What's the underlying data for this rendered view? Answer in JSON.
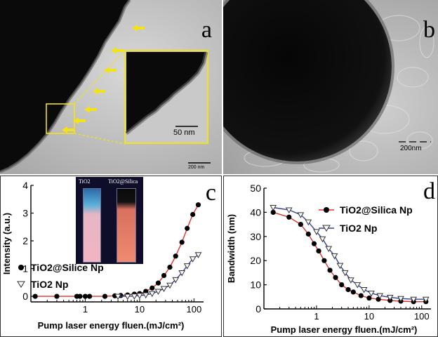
{
  "figure": {
    "panel_a": {
      "label": "a",
      "scale_bar": "200 nm",
      "inset_scale_bar": "50 nm"
    },
    "panel_b": {
      "label": "b",
      "scale_bar": "200nm"
    },
    "panel_c": {
      "label": "c",
      "inset_labels": [
        "TiO2",
        "TiO2@Silica"
      ]
    },
    "panel_d": {
      "label": "d"
    }
  },
  "chart_data": [
    {
      "type": "scatter",
      "panel": "c",
      "xscale": "log",
      "xlabel": "Pump laser energy fluen.(mJ/cm²)",
      "ylabel": "Intensity (a.u.)",
      "xlim": [
        0.1,
        150
      ],
      "ylim": [
        -0.2,
        4
      ],
      "yticks": [
        0,
        1,
        2,
        3,
        4
      ],
      "xticks": [
        1,
        10,
        100
      ],
      "legend": "middle-left",
      "series": [
        {
          "name": "TiO2@Silice Np",
          "marker": "filled-circle",
          "fit_color": "#e03030",
          "x": [
            0.12,
            0.3,
            0.7,
            0.8,
            1.0,
            1.2,
            2.3,
            3.5,
            4.5,
            6,
            8,
            10,
            13,
            17,
            22,
            28,
            36,
            46,
            60,
            75,
            95,
            120
          ],
          "y": [
            0,
            0,
            0,
            0,
            0,
            0,
            0,
            0.02,
            0.03,
            0.05,
            0.08,
            0.1,
            0.18,
            0.3,
            0.48,
            0.75,
            1.05,
            1.45,
            1.95,
            2.45,
            2.95,
            3.3
          ]
        },
        {
          "name": "TiO2 Np",
          "marker": "open-triangle-down",
          "fit_color": "#3040a0",
          "x": [
            4,
            6,
            8,
            10,
            13,
            17,
            22,
            28,
            36,
            46,
            60,
            75,
            95,
            120
          ],
          "y": [
            0,
            0,
            0.01,
            0.03,
            0.05,
            0.1,
            0.18,
            0.28,
            0.4,
            0.6,
            0.85,
            1.1,
            1.35,
            1.5
          ]
        }
      ]
    },
    {
      "type": "scatter",
      "panel": "d",
      "xscale": "log",
      "xlabel": "Pump laser energy fluen.(mJ/cm²)",
      "ylabel": "Bandwidth (nm)",
      "xlim": [
        0.1,
        150
      ],
      "ylim": [
        0,
        50
      ],
      "yticks": [
        0,
        10,
        20,
        30,
        40,
        50
      ],
      "xticks": [
        1,
        10,
        100
      ],
      "legend": "top-right",
      "series": [
        {
          "name": "TiO2@Silica Np",
          "marker": "filled-circle",
          "fit_color": "#e03030",
          "x": [
            0.15,
            0.3,
            0.5,
            0.7,
            0.9,
            1.1,
            1.4,
            1.8,
            2.3,
            3,
            4,
            5,
            7,
            10,
            15,
            25,
            40,
            70,
            120
          ],
          "y": [
            40,
            38,
            35,
            31,
            27,
            24,
            20,
            16,
            13,
            10,
            8,
            7,
            5.5,
            4.5,
            4,
            3.5,
            3.2,
            3,
            3
          ]
        },
        {
          "name": "TiO2 Np",
          "marker": "open-triangle-down",
          "fit_color": "#3040a0",
          "x": [
            0.15,
            0.3,
            0.5,
            0.7,
            1.0,
            1.3,
            1.7,
            2.2,
            2.8,
            3.5,
            4.5,
            6,
            8,
            11,
            16,
            25,
            40,
            70,
            120
          ],
          "y": [
            42,
            41,
            39,
            36,
            32,
            29,
            25,
            22,
            18,
            15,
            12,
            10,
            8,
            6.5,
            5.5,
            4.8,
            4.3,
            4,
            4
          ]
        }
      ]
    }
  ]
}
